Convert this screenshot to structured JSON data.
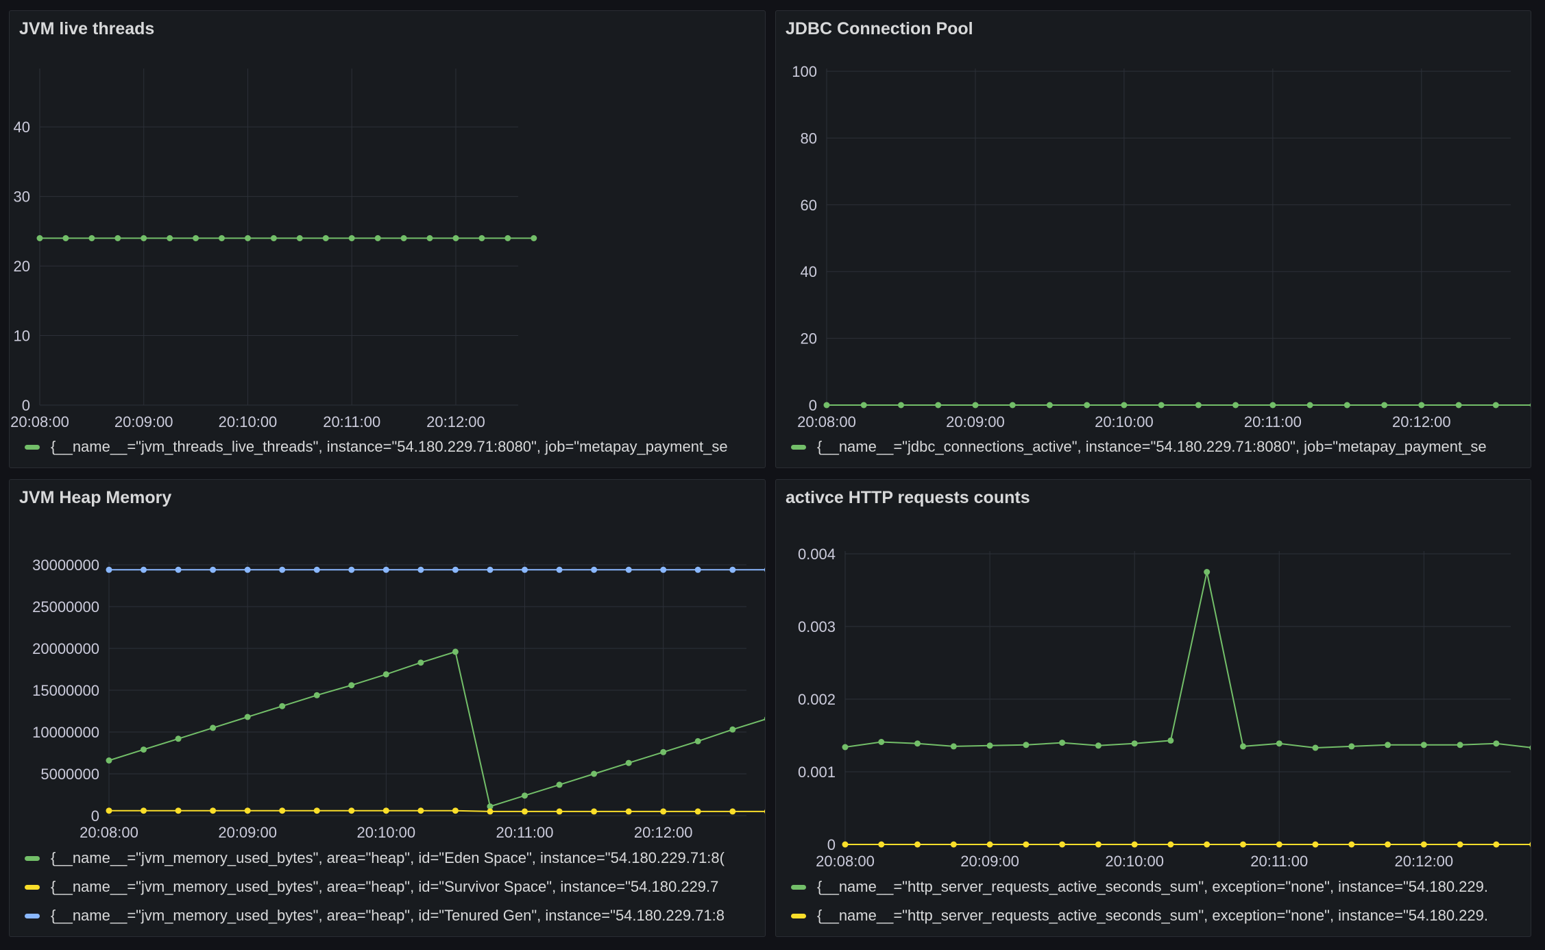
{
  "panels": [
    {
      "title": "JVM live threads",
      "legend": [
        {
          "label": "{__name__=\"jvm_threads_live_threads\", instance=\"54.180.229.71:8080\", job=\"metapay_payment_se",
          "color": "#73bf69"
        }
      ]
    },
    {
      "title": "JDBC Connection Pool",
      "legend": [
        {
          "label": "{__name__=\"jdbc_connections_active\", instance=\"54.180.229.71:8080\", job=\"metapay_payment_se",
          "color": "#73bf69"
        }
      ]
    },
    {
      "title": "JVM Heap Memory",
      "legend": [
        {
          "label": "{__name__=\"jvm_memory_used_bytes\", area=\"heap\", id=\"Eden Space\", instance=\"54.180.229.71:8(",
          "color": "#73bf69"
        },
        {
          "label": "{__name__=\"jvm_memory_used_bytes\", area=\"heap\", id=\"Survivor Space\", instance=\"54.180.229.7",
          "color": "#fade2a"
        },
        {
          "label": "{__name__=\"jvm_memory_used_bytes\", area=\"heap\", id=\"Tenured Gen\", instance=\"54.180.229.71:8",
          "color": "#8ab8ff"
        }
      ]
    },
    {
      "title": "activce HTTP requests counts",
      "legend": [
        {
          "label": "{__name__=\"http_server_requests_active_seconds_sum\", exception=\"none\", instance=\"54.180.229.",
          "color": "#73bf69"
        },
        {
          "label": "{__name__=\"http_server_requests_active_seconds_sum\", exception=\"none\", instance=\"54.180.229.",
          "color": "#fade2a"
        }
      ]
    }
  ],
  "chart_data": [
    {
      "type": "line",
      "title": "JVM live threads",
      "x_ticks": [
        "20:08:00",
        "20:09:00",
        "20:10:00",
        "20:11:00",
        "20:12:00"
      ],
      "x": [
        "20:08:00",
        "20:08:15",
        "20:08:30",
        "20:08:45",
        "20:09:00",
        "20:09:15",
        "20:09:30",
        "20:09:45",
        "20:10:00",
        "20:10:15",
        "20:10:30",
        "20:10:45",
        "20:11:00",
        "20:11:15",
        "20:11:30",
        "20:11:45",
        "20:12:00",
        "20:12:15",
        "20:12:30",
        "20:12:45"
      ],
      "y_ticks": [
        0,
        10,
        20,
        30,
        40
      ],
      "ylim": [
        0,
        48
      ],
      "series": [
        {
          "values": [
            24,
            24,
            24,
            24,
            24,
            24,
            24,
            24,
            24,
            24,
            24,
            24,
            24,
            24,
            24,
            24,
            24,
            24,
            24,
            24
          ],
          "color": "#73bf69"
        }
      ]
    },
    {
      "type": "line",
      "title": "JDBC Connection Pool",
      "x_ticks": [
        "20:08:00",
        "20:09:00",
        "20:10:00",
        "20:11:00",
        "20:12:00"
      ],
      "x": [
        "20:08:00",
        "20:08:15",
        "20:08:30",
        "20:08:45",
        "20:09:00",
        "20:09:15",
        "20:09:30",
        "20:09:45",
        "20:10:00",
        "20:10:15",
        "20:10:30",
        "20:10:45",
        "20:11:00",
        "20:11:15",
        "20:11:30",
        "20:11:45",
        "20:12:00",
        "20:12:15",
        "20:12:30",
        "20:12:45"
      ],
      "y_ticks": [
        0,
        20,
        40,
        60,
        80,
        100
      ],
      "ylim": [
        0,
        100
      ],
      "series": [
        {
          "values": [
            0,
            0,
            0,
            0,
            0,
            0,
            0,
            0,
            0,
            0,
            0,
            0,
            0,
            0,
            0,
            0,
            0,
            0,
            0,
            0
          ],
          "color": "#73bf69"
        }
      ]
    },
    {
      "type": "line",
      "title": "JVM Heap Memory",
      "x_ticks": [
        "20:08:00",
        "20:09:00",
        "20:10:00",
        "20:11:00",
        "20:12:00"
      ],
      "x": [
        "20:08:00",
        "20:08:15",
        "20:08:30",
        "20:08:45",
        "20:09:00",
        "20:09:15",
        "20:09:30",
        "20:09:45",
        "20:10:00",
        "20:10:15",
        "20:10:30",
        "20:10:45",
        "20:11:00",
        "20:11:15",
        "20:11:30",
        "20:11:45",
        "20:12:00",
        "20:12:15",
        "20:12:30",
        "20:12:45"
      ],
      "y_ticks": [
        0,
        5000000,
        10000000,
        15000000,
        20000000,
        25000000,
        30000000
      ],
      "ylim": [
        0,
        30000000
      ],
      "series": [
        {
          "values": [
            6600000,
            7900000,
            9200000,
            10500000,
            11800000,
            13100000,
            14400000,
            15600000,
            16900000,
            18300000,
            19600000,
            1100000,
            2400000,
            3700000,
            5000000,
            6300000,
            7600000,
            8900000,
            10300000,
            11600000
          ],
          "color": "#73bf69"
        },
        {
          "values": [
            600000,
            600000,
            600000,
            600000,
            600000,
            600000,
            600000,
            600000,
            600000,
            600000,
            600000,
            500000,
            500000,
            500000,
            500000,
            500000,
            500000,
            500000,
            500000,
            500000
          ],
          "color": "#fade2a"
        },
        {
          "values": [
            29400000,
            29400000,
            29400000,
            29400000,
            29400000,
            29400000,
            29400000,
            29400000,
            29400000,
            29400000,
            29400000,
            29400000,
            29400000,
            29400000,
            29400000,
            29400000,
            29400000,
            29400000,
            29400000,
            29400000
          ],
          "color": "#8ab8ff"
        }
      ]
    },
    {
      "type": "line",
      "title": "activce HTTP requests counts",
      "x_ticks": [
        "20:08:00",
        "20:09:00",
        "20:10:00",
        "20:11:00",
        "20:12:00"
      ],
      "x": [
        "20:08:00",
        "20:08:15",
        "20:08:30",
        "20:08:45",
        "20:09:00",
        "20:09:15",
        "20:09:30",
        "20:09:45",
        "20:10:00",
        "20:10:15",
        "20:10:30",
        "20:10:45",
        "20:11:00",
        "20:11:15",
        "20:11:30",
        "20:11:45",
        "20:12:00",
        "20:12:15",
        "20:12:30",
        "20:12:45"
      ],
      "y_ticks": [
        0,
        0.001,
        0.002,
        0.003,
        0.004
      ],
      "ylim": [
        0,
        0.004
      ],
      "series": [
        {
          "values": [
            0.00134,
            0.00141,
            0.00139,
            0.00135,
            0.00136,
            0.00137,
            0.0014,
            0.00136,
            0.00139,
            0.00143,
            0.00375,
            0.00135,
            0.00139,
            0.00133,
            0.00135,
            0.00137,
            0.00137,
            0.00137,
            0.00139,
            0.00133
          ],
          "color": "#73bf69"
        },
        {
          "values": [
            0,
            0,
            0,
            0,
            0,
            0,
            0,
            0,
            0,
            0,
            0,
            0,
            0,
            0,
            0,
            0,
            0,
            0,
            0,
            0
          ],
          "color": "#fade2a"
        }
      ]
    }
  ]
}
